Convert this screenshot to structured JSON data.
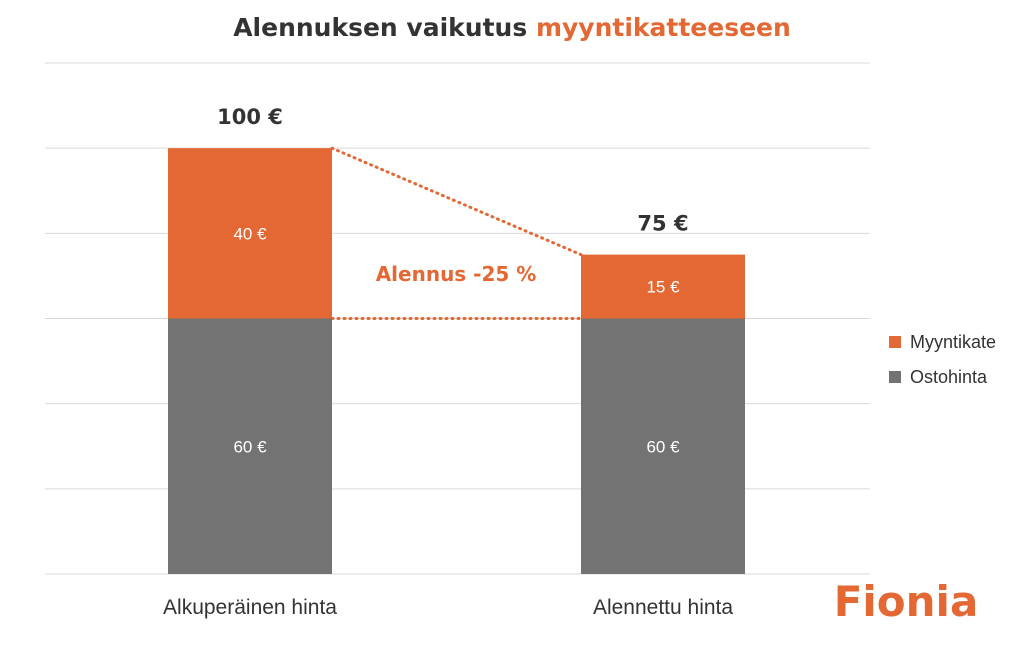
{
  "colors": {
    "accent": "#e36834",
    "base": "#737373",
    "text": "#333333",
    "grid": "#d9d9d9"
  },
  "chart_data": {
    "type": "bar",
    "stacked": true,
    "title_parts": [
      "Alennuksen vaikutus ",
      "myyntikatteeseen"
    ],
    "categories": [
      "Alkuperäinen hinta",
      "Alennettu hinta"
    ],
    "series": [
      {
        "name": "Ostohinta",
        "values": [
          60,
          60
        ],
        "labels": [
          "60 €",
          "60 €"
        ],
        "color": "#737373"
      },
      {
        "name": "Myyntikate",
        "values": [
          40,
          15
        ],
        "labels": [
          "40 €",
          "15 €"
        ],
        "color": "#e36834"
      }
    ],
    "totals": [
      "100 €",
      "75 €"
    ],
    "ylim": [
      0,
      120
    ],
    "grid": true,
    "legend_position": "right",
    "legend_order": [
      "Myyntikate",
      "Ostohinta"
    ],
    "annotation": "Alennus -25 %"
  },
  "brand": "Fionia"
}
